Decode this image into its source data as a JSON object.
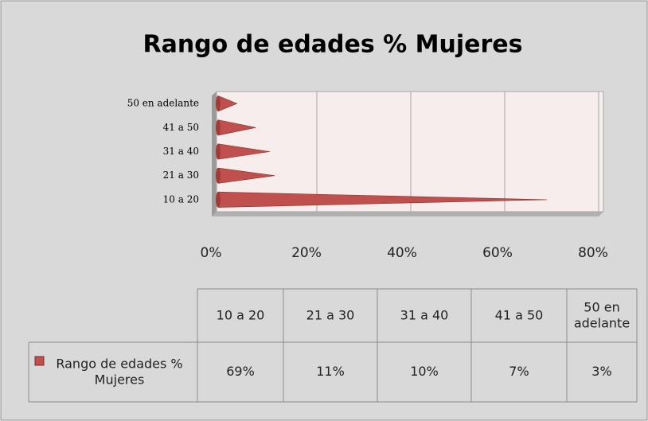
{
  "chart_data": {
    "type": "bar",
    "orientation": "horizontal",
    "title": "Rango de edades % Mujeres",
    "categories": [
      "10 a 20",
      "21 a 30",
      "31 a 40",
      "41 a 50",
      "50 en adelante"
    ],
    "series": [
      {
        "name": "Rango de edades % Mujeres",
        "color": "#c0504d",
        "values": [
          69,
          11,
          10,
          7,
          3
        ],
        "value_labels": [
          "69%",
          "11%",
          "10%",
          "7%",
          "3%"
        ]
      }
    ],
    "xlim": [
      0,
      80
    ],
    "xticks": [
      {
        "value": 0,
        "label": "0%"
      },
      {
        "value": 20,
        "label": "20%"
      },
      {
        "value": 40,
        "label": "40%"
      },
      {
        "value": 60,
        "label": "60%"
      },
      {
        "value": 80,
        "label": "80%"
      }
    ],
    "grid": true,
    "data_table": true
  }
}
